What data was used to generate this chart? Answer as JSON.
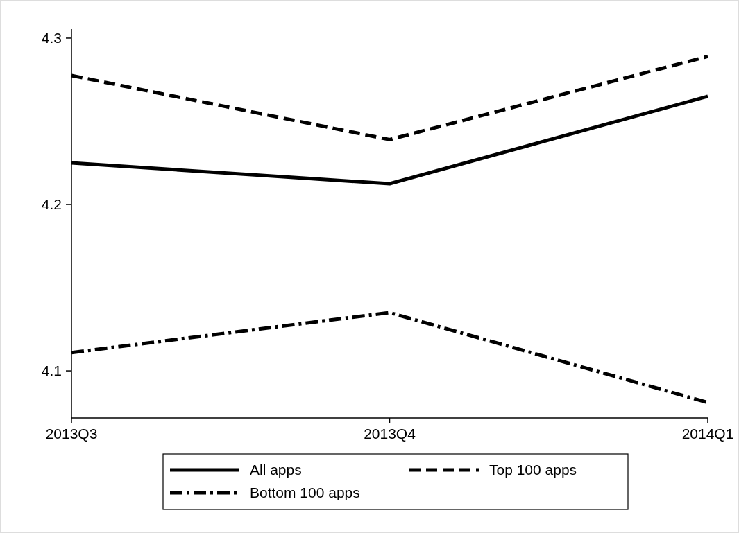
{
  "chart_data": {
    "type": "line",
    "categories": [
      "2013Q3",
      "2013Q4",
      "2014Q1"
    ],
    "series": [
      {
        "name": "All apps",
        "color": "#000000",
        "line_style": "solid",
        "values": [
          4.225,
          4.2125,
          4.265
        ]
      },
      {
        "name": "Top 100 apps",
        "color": "#000000",
        "line_style": "dashed",
        "values": [
          4.2775,
          4.239,
          4.289
        ]
      },
      {
        "name": "Bottom 100 apps",
        "color": "#000000",
        "line_style": "dashdot",
        "values": [
          4.111,
          4.135,
          4.081
        ]
      }
    ],
    "ylim": [
      4.0717,
      4.3054
    ],
    "yticks": [
      4.1,
      4.2,
      4.3
    ],
    "grid": false,
    "legend": "bottom"
  }
}
